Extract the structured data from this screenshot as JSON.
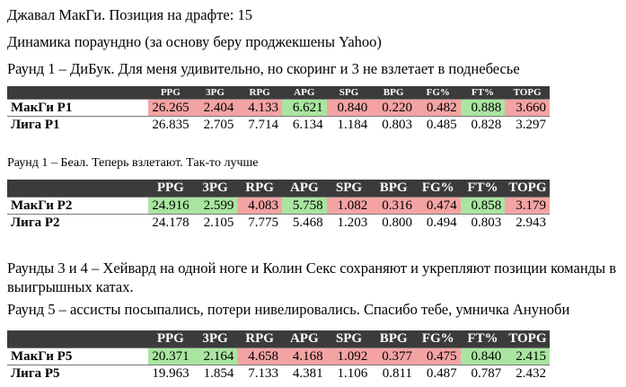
{
  "paragraphs": [
    "Джавал МакГи. Позиция на драфте: 15",
    "Динамика пораундно (за основу беру проджекшены Yahoo)",
    "Раунд 1 – ДиБук. Для меня удивительно, но скоринг и 3 не взлетает в поднебесье",
    "Раунд 1 – Беал. Теперь взлетают. Так-то лучше",
    "Раунды 3 и 4 – Хейвард на одной ноге и Колин Секс сохраняют и укрепляют позиции команды в выигрышных катах.",
    "Раунд 5 – ассисты посыпались, потери нивелировались. Спасибо тебе, умничка Ануноби"
  ],
  "tables": [
    {
      "headers": [
        "PPG",
        "3PG",
        "RPG",
        "APG",
        "SPG",
        "BPG",
        "FG%",
        "FT%",
        "TOPG"
      ],
      "rows": [
        {
          "label": "МакГи Р1",
          "cells": [
            "26.265",
            "2.404",
            "4.133",
            "6.621",
            "0.840",
            "0.220",
            "0.482",
            "0.888",
            "3.660"
          ],
          "colors": [
            "#f4a3a3",
            "#f4a3a3",
            "#f4a3a3",
            "#a9e5a0",
            "#f4a3a3",
            "#f4a3a3",
            "#f4a3a3",
            "#a9e5a0",
            "#f4a3a3"
          ]
        },
        {
          "label": "Лига Р1",
          "cells": [
            "26.835",
            "2.705",
            "7.714",
            "6.134",
            "1.184",
            "0.803",
            "0.485",
            "0.828",
            "3.297"
          ]
        }
      ]
    },
    {
      "headers": [
        "PPG",
        "3PG",
        "RPG",
        "APG",
        "SPG",
        "BPG",
        "FG%",
        "FT%",
        "TOPG"
      ],
      "rows": [
        {
          "label": "МакГи Р2",
          "cells": [
            "24.916",
            "2.599",
            "4.083",
            "5.758",
            "1.082",
            "0.316",
            "0.474",
            "0.858",
            "3.179"
          ],
          "colors": [
            "#a9e5a0",
            "#a9e5a0",
            "#f4a3a3",
            "#a9e5a0",
            "#f4a3a3",
            "#f4a3a3",
            "#f4a3a3",
            "#a9e5a0",
            "#f4a3a3"
          ]
        },
        {
          "label": "Лига Р2",
          "cells": [
            "24.178",
            "2.105",
            "7.775",
            "5.468",
            "1.203",
            "0.800",
            "0.494",
            "0.803",
            "2.943"
          ]
        }
      ]
    },
    {
      "headers": [
        "PPG",
        "3PG",
        "RPG",
        "APG",
        "SPG",
        "BPG",
        "FG%",
        "FT%",
        "TOPG"
      ],
      "rows": [
        {
          "label": "МакГи Р5",
          "cells": [
            "20.371",
            "2.164",
            "4.658",
            "4.168",
            "1.092",
            "0.377",
            "0.475",
            "0.840",
            "2.415"
          ],
          "colors": [
            "#a9e5a0",
            "#a9e5a0",
            "#f4a3a3",
            "#f4a3a3",
            "#f4a3a3",
            "#f4a3a3",
            "#f4a3a3",
            "#a9e5a0",
            "#a9e5a0"
          ]
        },
        {
          "label": "Лига Р5",
          "cells": [
            "19.963",
            "1.854",
            "7.133",
            "4.381",
            "1.106",
            "0.811",
            "0.487",
            "0.787",
            "2.432"
          ]
        }
      ]
    }
  ]
}
